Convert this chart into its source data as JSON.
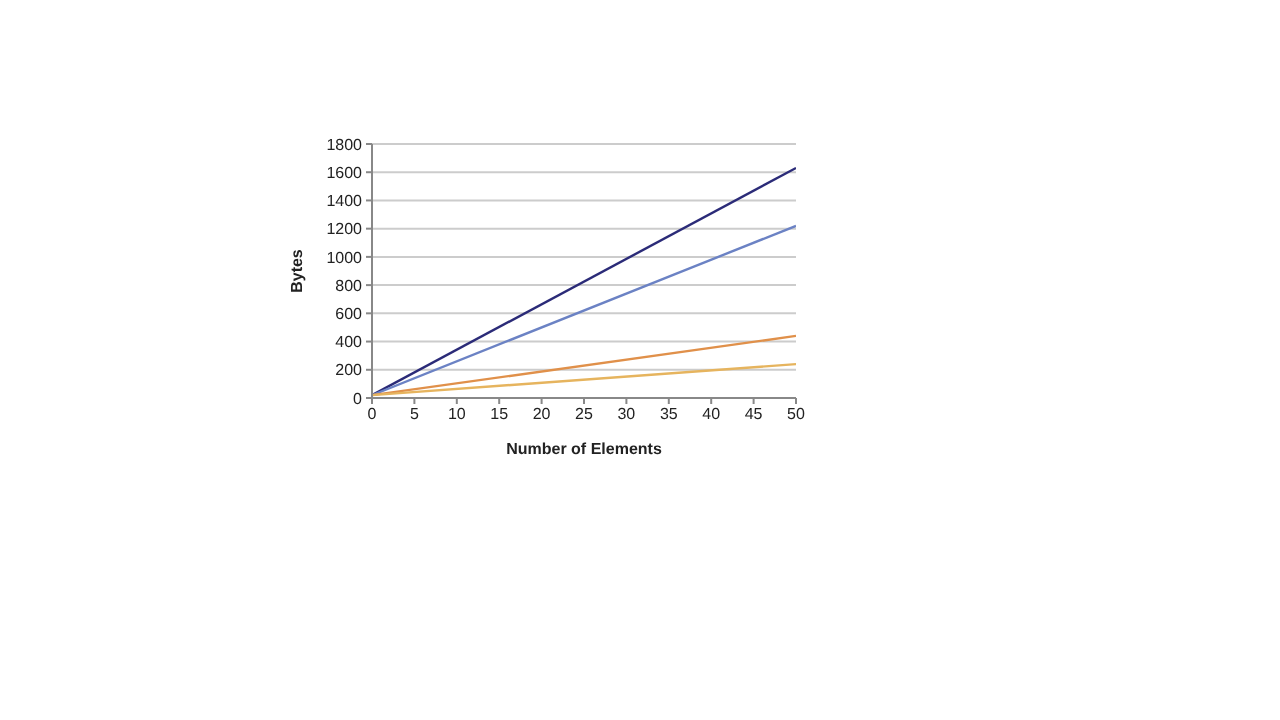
{
  "chart_data": {
    "type": "line",
    "xlabel": "Number of Elements",
    "ylabel": "Bytes",
    "x": [
      0,
      50
    ],
    "series": [
      {
        "color": "#2b2b78",
        "values": [
          20,
          1630
        ]
      },
      {
        "color": "#6b82c4",
        "values": [
          20,
          1220
        ]
      },
      {
        "color": "#e0904a",
        "values": [
          20,
          440
        ]
      },
      {
        "color": "#e6b45e",
        "values": [
          20,
          240
        ]
      }
    ],
    "xlim": [
      0,
      50
    ],
    "xticks": [
      0,
      5,
      10,
      15,
      20,
      25,
      30,
      35,
      40,
      45,
      50
    ],
    "ylim": [
      0,
      1800
    ],
    "yticks": [
      0,
      200,
      400,
      600,
      800,
      1000,
      1200,
      1400,
      1600,
      1800
    ],
    "grid": "y",
    "marker": "none",
    "line_style": "solid"
  }
}
